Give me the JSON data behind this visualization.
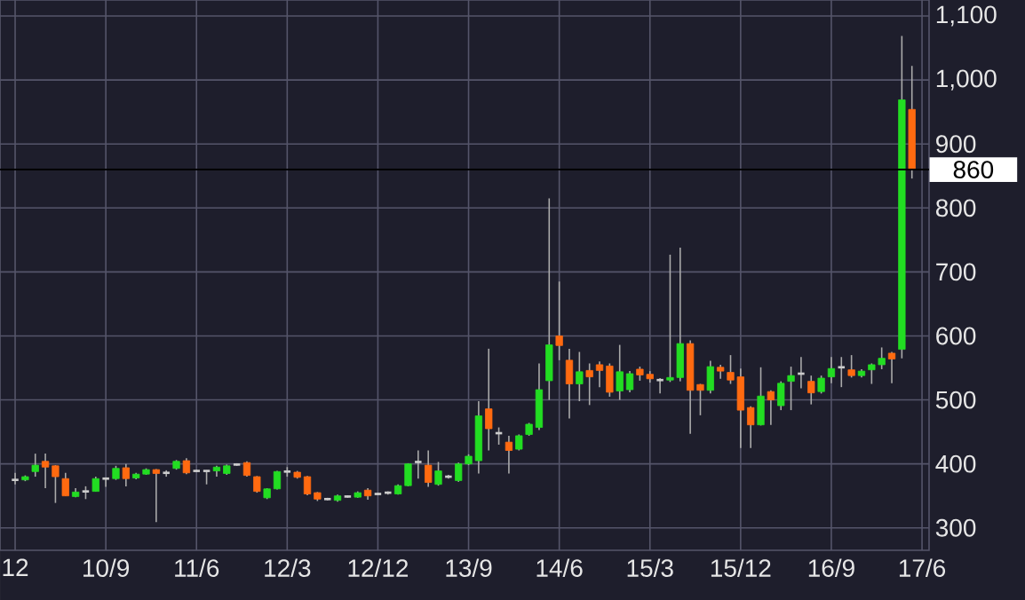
{
  "chart_data": {
    "type": "candlestick",
    "x": [
      "2009-12",
      "2010-01",
      "2010-02",
      "2010-03",
      "2010-04",
      "2010-05",
      "2010-06",
      "2010-07",
      "2010-08",
      "2010-09",
      "2010-10",
      "2010-11",
      "2010-12",
      "2011-01",
      "2011-02",
      "2011-03",
      "2011-04",
      "2011-05",
      "2011-06",
      "2011-07",
      "2011-08",
      "2011-09",
      "2011-10",
      "2011-11",
      "2011-12",
      "2012-01",
      "2012-02",
      "2012-03",
      "2012-04",
      "2012-05",
      "2012-06",
      "2012-07",
      "2012-08",
      "2012-09",
      "2012-10",
      "2012-11",
      "2012-12",
      "2013-01",
      "2013-02",
      "2013-03",
      "2013-04",
      "2013-05",
      "2013-06",
      "2013-07",
      "2013-08",
      "2013-09",
      "2013-10",
      "2013-11",
      "2013-12",
      "2014-01",
      "2014-02",
      "2014-03",
      "2014-04",
      "2014-05",
      "2014-06",
      "2014-07",
      "2014-08",
      "2014-09",
      "2014-10",
      "2014-11",
      "2014-12",
      "2015-01",
      "2015-02",
      "2015-03",
      "2015-04",
      "2015-05",
      "2015-06",
      "2015-07",
      "2015-08",
      "2015-09",
      "2015-10",
      "2015-11",
      "2015-12",
      "2016-01",
      "2016-02",
      "2016-03",
      "2016-04",
      "2016-05",
      "2016-06",
      "2016-07",
      "2016-08",
      "2016-09",
      "2016-10",
      "2016-11",
      "2016-12",
      "2017-01",
      "2017-02",
      "2017-03",
      "2017-04",
      "2017-05"
    ],
    "ohlc": [
      [
        375,
        386,
        368,
        375
      ],
      [
        375,
        382,
        373,
        380
      ],
      [
        388,
        416,
        380,
        398
      ],
      [
        404,
        416,
        362,
        395
      ],
      [
        397,
        398,
        339,
        380
      ],
      [
        377,
        386,
        350,
        350
      ],
      [
        349,
        362,
        348,
        356
      ],
      [
        357,
        365,
        345,
        357
      ],
      [
        357,
        380,
        357,
        377
      ],
      [
        377,
        378,
        364,
        377
      ],
      [
        377,
        397,
        375,
        393
      ],
      [
        394,
        400,
        365,
        377
      ],
      [
        378,
        386,
        376,
        384
      ],
      [
        384,
        393,
        383,
        391
      ],
      [
        391,
        392,
        309,
        385
      ],
      [
        386,
        390,
        380,
        386
      ],
      [
        393,
        406,
        391,
        404
      ],
      [
        405,
        409,
        384,
        386
      ],
      [
        389,
        391,
        387,
        389
      ],
      [
        389,
        390,
        368,
        389
      ],
      [
        389,
        397,
        380,
        395
      ],
      [
        385,
        399,
        383,
        397
      ],
      [
        399,
        401,
        397,
        399
      ],
      [
        402,
        404,
        380,
        382
      ],
      [
        380,
        381,
        355,
        357
      ],
      [
        347,
        362,
        345,
        361
      ],
      [
        361,
        389,
        360,
        388
      ],
      [
        388,
        395,
        380,
        388
      ],
      [
        387,
        389,
        377,
        379
      ],
      [
        380,
        381,
        351,
        353
      ],
      [
        355,
        356,
        342,
        345
      ],
      [
        345,
        347,
        343,
        345
      ],
      [
        343,
        352,
        341,
        350
      ],
      [
        349,
        351,
        347,
        349
      ],
      [
        348,
        357,
        347,
        355
      ],
      [
        359,
        362,
        344,
        350
      ],
      [
        353,
        355,
        351,
        353
      ],
      [
        355,
        357,
        352,
        355
      ],
      [
        353,
        368,
        352,
        366
      ],
      [
        366,
        401,
        365,
        400
      ],
      [
        403,
        421,
        377,
        403
      ],
      [
        398,
        421,
        364,
        371
      ],
      [
        368,
        403,
        366,
        389
      ],
      [
        380,
        383,
        377,
        380
      ],
      [
        374,
        402,
        372,
        400
      ],
      [
        400,
        415,
        398,
        412
      ],
      [
        405,
        498,
        385,
        475
      ],
      [
        486,
        580,
        421,
        455
      ],
      [
        448,
        457,
        430,
        448
      ],
      [
        434,
        444,
        385,
        421
      ],
      [
        423,
        446,
        421,
        444
      ],
      [
        446,
        464,
        444,
        462
      ],
      [
        457,
        557,
        453,
        516
      ],
      [
        530,
        815,
        500,
        586
      ],
      [
        600,
        685,
        562,
        585
      ],
      [
        562,
        580,
        471,
        525
      ],
      [
        525,
        575,
        498,
        544
      ],
      [
        546,
        557,
        492,
        536
      ],
      [
        555,
        560,
        520,
        546
      ],
      [
        553,
        557,
        505,
        512
      ],
      [
        514,
        586,
        500,
        544
      ],
      [
        516,
        545,
        512,
        541
      ],
      [
        548,
        552,
        530,
        539
      ],
      [
        540,
        545,
        527,
        533
      ],
      [
        531,
        534,
        510,
        531
      ],
      [
        531,
        727,
        528,
        535
      ],
      [
        535,
        738,
        529,
        588
      ],
      [
        588,
        593,
        447,
        515
      ],
      [
        524,
        525,
        476,
        515
      ],
      [
        515,
        561,
        510,
        552
      ],
      [
        551,
        555,
        533,
        545
      ],
      [
        543,
        570,
        525,
        531
      ],
      [
        536,
        549,
        425,
        484
      ],
      [
        488,
        490,
        425,
        461
      ],
      [
        461,
        551,
        460,
        506
      ],
      [
        513,
        515,
        461,
        500
      ],
      [
        491,
        529,
        484,
        526
      ],
      [
        529,
        552,
        484,
        538
      ],
      [
        541,
        567,
        518,
        541
      ],
      [
        529,
        538,
        493,
        511
      ],
      [
        513,
        538,
        510,
        534
      ],
      [
        536,
        567,
        526,
        549
      ],
      [
        551,
        567,
        520,
        551
      ],
      [
        547,
        570,
        535,
        538
      ],
      [
        538,
        548,
        535,
        545
      ],
      [
        547,
        557,
        525,
        555
      ],
      [
        555,
        582,
        548,
        565
      ],
      [
        573,
        575,
        526,
        564
      ],
      [
        579,
        1069,
        565,
        969
      ],
      [
        954,
        1022,
        846,
        860
      ]
    ],
    "colors": [
      "#cccccc",
      "#22dd22",
      "#22dd22",
      "#ff6a10",
      "#ff6a10",
      "#ff6a10",
      "#22dd22",
      "#cccccc",
      "#22dd22",
      "#cccccc",
      "#22dd22",
      "#ff6a10",
      "#22dd22",
      "#22dd22",
      "#ff6a10",
      "#cccccc",
      "#22dd22",
      "#ff6a10",
      "#cccccc",
      "#cccccc",
      "#22dd22",
      "#22dd22",
      "#cccccc",
      "#ff6a10",
      "#ff6a10",
      "#22dd22",
      "#22dd22",
      "#cccccc",
      "#ff6a10",
      "#ff6a10",
      "#ff6a10",
      "#cccccc",
      "#22dd22",
      "#cccccc",
      "#22dd22",
      "#ff6a10",
      "#cccccc",
      "#cccccc",
      "#22dd22",
      "#22dd22",
      "#cccccc",
      "#ff6a10",
      "#22dd22",
      "#cccccc",
      "#22dd22",
      "#22dd22",
      "#22dd22",
      "#ff6a10",
      "#cccccc",
      "#ff6a10",
      "#22dd22",
      "#22dd22",
      "#22dd22",
      "#22dd22",
      "#ff6a10",
      "#ff6a10",
      "#22dd22",
      "#ff6a10",
      "#ff6a10",
      "#ff6a10",
      "#22dd22",
      "#22dd22",
      "#ff6a10",
      "#ff6a10",
      "#cccccc",
      "#22dd22",
      "#22dd22",
      "#ff6a10",
      "#ff6a10",
      "#22dd22",
      "#ff6a10",
      "#ff6a10",
      "#ff6a10",
      "#ff6a10",
      "#22dd22",
      "#ff6a10",
      "#22dd22",
      "#22dd22",
      "#cccccc",
      "#ff6a10",
      "#22dd22",
      "#22dd22",
      "#cccccc",
      "#ff6a10",
      "#22dd22",
      "#22dd22",
      "#22dd22",
      "#ff6a10",
      "#22dd22",
      "#ff6a10"
    ],
    "xlim": [
      "2009-10-16",
      "2017-06-22"
    ],
    "xticks": [
      {
        "value": "2009-12",
        "label": "12"
      },
      {
        "value": "2010-09",
        "label": "10/9"
      },
      {
        "value": "2011-06",
        "label": "11/6"
      },
      {
        "value": "2012-03",
        "label": "12/3"
      },
      {
        "value": "2012-12",
        "label": "12/12"
      },
      {
        "value": "2013-09",
        "label": "13/9"
      },
      {
        "value": "2014-06",
        "label": "14/6"
      },
      {
        "value": "2015-03",
        "label": "15/3"
      },
      {
        "value": "2015-12",
        "label": "15/12"
      },
      {
        "value": "2016-09",
        "label": "16/9"
      },
      {
        "value": "2017-06",
        "label": "17/6"
      }
    ],
    "ylim": [
      265,
      1125
    ],
    "yticks": [
      300,
      400,
      500,
      600,
      700,
      800,
      900,
      {
        "value": 1000,
        "label": "1,000"
      },
      {
        "value": 1100,
        "label": "1,100"
      }
    ],
    "ref_lines": [
      {
        "axis": "y",
        "value": 860,
        "label": "860",
        "color": "#000000"
      }
    ],
    "grid": true
  }
}
